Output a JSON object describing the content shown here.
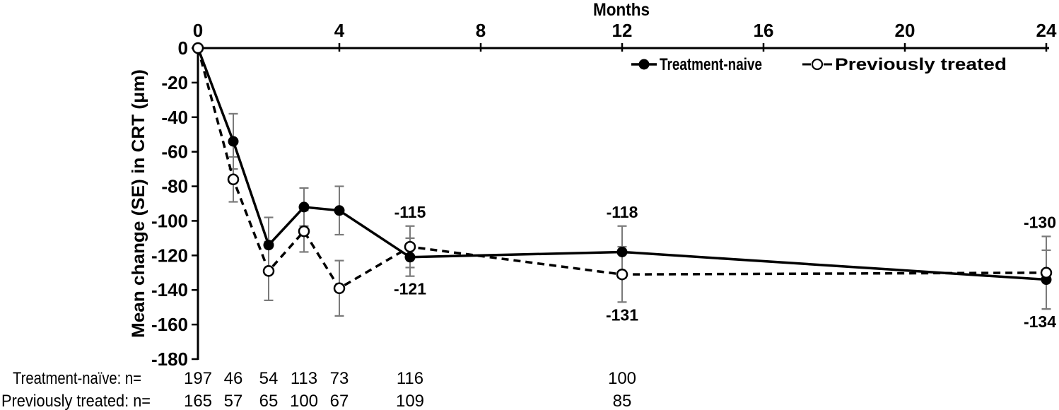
{
  "chart_data": {
    "type": "line",
    "xlabel": "Months",
    "ylabel": "Mean change (SE) in CRT (μm)",
    "xlim": [
      0,
      24
    ],
    "ylim": [
      -180,
      0
    ],
    "x_ticks": [
      0,
      4,
      8,
      12,
      16,
      20,
      24
    ],
    "y_ticks": [
      0,
      -20,
      -40,
      -60,
      -80,
      -100,
      -120,
      -140,
      -160,
      -180
    ],
    "grid": false,
    "legend_position": "top-right-inside",
    "x": [
      0,
      1,
      2,
      3,
      4,
      6,
      12,
      24
    ],
    "series": [
      {
        "name": "Treatment-naive",
        "line_style": "solid",
        "marker": "filled-circle",
        "values": [
          0,
          -54,
          -114,
          -92,
          -94,
          -121,
          -118,
          -134
        ],
        "se": [
          0,
          16,
          16,
          11,
          14,
          11,
          15,
          17
        ]
      },
      {
        "name": "Previously treated",
        "line_style": "dashed",
        "marker": "open-circle",
        "values": [
          0,
          -76,
          -129,
          -106,
          -139,
          -115,
          -131,
          -130
        ],
        "se": [
          0,
          13,
          17,
          12,
          16,
          12,
          16,
          21
        ]
      }
    ],
    "point_labels": [
      {
        "series": "Previously treated",
        "x": 6,
        "text": "-115",
        "position": "above"
      },
      {
        "series": "Treatment-naive",
        "x": 6,
        "text": "-121",
        "position": "below"
      },
      {
        "series": "Treatment-naive",
        "x": 12,
        "text": "-118",
        "position": "above"
      },
      {
        "series": "Previously treated",
        "x": 12,
        "text": "-131",
        "position": "below"
      },
      {
        "series": "Previously treated",
        "x": 24,
        "text": "-130",
        "position": "above"
      },
      {
        "series": "Treatment-naive",
        "x": 24,
        "text": "-134",
        "position": "below"
      }
    ]
  },
  "n_table": {
    "rows": [
      {
        "label": "Treatment-naïve: n=",
        "months": [
          0,
          1,
          2,
          3,
          4,
          6,
          12
        ],
        "values": [
          "197",
          "46",
          "54",
          "113",
          "73",
          "116",
          "100"
        ]
      },
      {
        "label": "Previously treated: n=",
        "months": [
          0,
          1,
          2,
          3,
          4,
          6,
          12
        ],
        "values": [
          "165",
          "57",
          "65",
          "100",
          "67",
          "109",
          "85"
        ]
      }
    ]
  },
  "colors": {
    "series": "#000000",
    "error_bar": "#7a7a7a",
    "text": "#000000",
    "background": "#ffffff"
  }
}
